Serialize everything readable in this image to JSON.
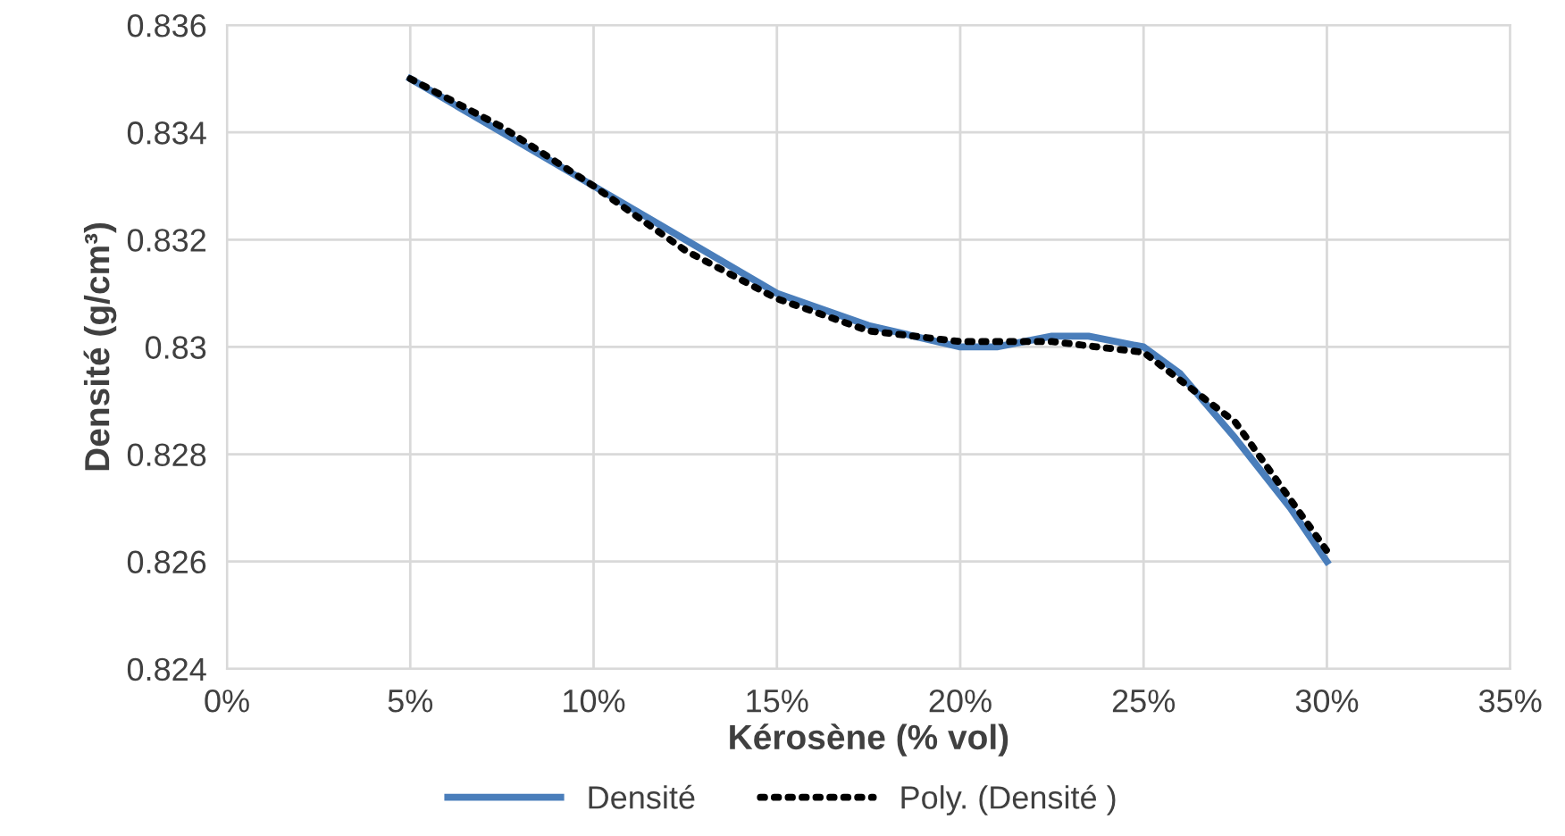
{
  "chart_data": {
    "type": "line",
    "xlabel": "Kérosène (% vol)",
    "ylabel": "Densité (g/cm³)",
    "x": [
      5,
      7.5,
      10,
      12.5,
      15,
      17.5,
      20,
      21,
      22.5,
      23.5,
      25,
      26,
      27.5,
      29,
      30
    ],
    "series": [
      {
        "name": "Densité",
        "color": "#4a7ebb",
        "values": [
          0.835,
          0.834,
          0.833,
          0.832,
          0.831,
          0.8304,
          0.83,
          0.83,
          0.8302,
          0.8302,
          0.83,
          0.8295,
          0.8283,
          0.827,
          0.826
        ],
        "line_style": "solid"
      },
      {
        "name": "Poly. (Densité )",
        "color": "#000000",
        "type": "line",
        "line_style": "dotted",
        "x": [
          5,
          7.5,
          10,
          12.5,
          15,
          17.5,
          20,
          22.5,
          25,
          27.5,
          30
        ],
        "values": [
          0.835,
          0.8341,
          0.833,
          0.8318,
          0.8309,
          0.8303,
          0.8301,
          0.8301,
          0.8299,
          0.8286,
          0.8262
        ]
      }
    ],
    "xlim": [
      0,
      35
    ],
    "xticks": [
      {
        "value": 0,
        "label": "0%"
      },
      {
        "value": 5,
        "label": "5%"
      },
      {
        "value": 10,
        "label": "10%"
      },
      {
        "value": 15,
        "label": "15%"
      },
      {
        "value": 20,
        "label": "20%"
      },
      {
        "value": 25,
        "label": "25%"
      },
      {
        "value": 30,
        "label": "30%"
      },
      {
        "value": 35,
        "label": "35%"
      }
    ],
    "ylim": [
      0.824,
      0.836
    ],
    "yticks": [
      0.824,
      0.826,
      0.828,
      0.83,
      0.832,
      0.834,
      0.836
    ],
    "grid": true,
    "legend": "bottom",
    "marker": "none"
  }
}
